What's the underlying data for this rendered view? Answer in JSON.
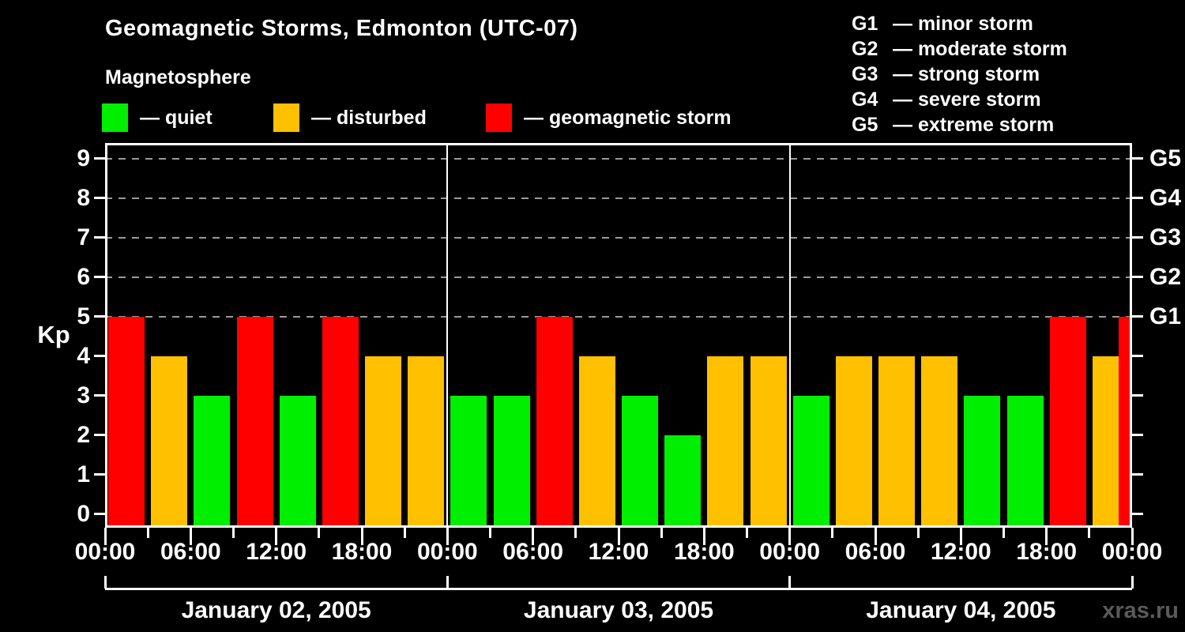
{
  "header": {
    "title": "Geomagnetic Storms, Edmonton (UTC-07)",
    "subtitle": "Magnetosphere",
    "legend": [
      {
        "status": "quiet",
        "label": "— quiet",
        "color": "#00ee00"
      },
      {
        "status": "disturbed",
        "label": "— disturbed",
        "color": "#ffc000"
      },
      {
        "status": "storm",
        "label": "— geomagnetic storm",
        "color": "#ff0000"
      }
    ],
    "g_scale_legend": [
      {
        "code": "G1",
        "label": "— minor storm"
      },
      {
        "code": "G2",
        "label": "— moderate storm"
      },
      {
        "code": "G3",
        "label": "— strong storm"
      },
      {
        "code": "G4",
        "label": "— severe storm"
      },
      {
        "code": "G5",
        "label": "— extreme storm"
      }
    ]
  },
  "chart_data": {
    "type": "bar",
    "title": "Geomagnetic Storms, Edmonton (UTC-07)",
    "ylabel": "Kp",
    "ylim": [
      0,
      9.4
    ],
    "yticks": [
      0,
      1,
      2,
      3,
      4,
      5,
      6,
      7,
      8,
      9
    ],
    "gridlines_at": [
      5,
      6,
      7,
      8,
      9
    ],
    "grid": "dashed horizontal at storm levels only",
    "legend_position": "top",
    "right_axis": [
      {
        "kp": 5,
        "label": "G1"
      },
      {
        "kp": 6,
        "label": "G2"
      },
      {
        "kp": 7,
        "label": "G3"
      },
      {
        "kp": 8,
        "label": "G4"
      },
      {
        "kp": 9,
        "label": "G5"
      }
    ],
    "hours_per_bar": 3,
    "x_tick_labels": [
      "00:00",
      "06:00",
      "12:00",
      "18:00",
      "00:00",
      "06:00",
      "12:00",
      "18:00",
      "00:00",
      "06:00",
      "12:00",
      "18:00",
      "00:00"
    ],
    "days": [
      {
        "date": "January 02, 2005",
        "kp_values": [
          5,
          4,
          3,
          5,
          3,
          5,
          4,
          4
        ],
        "statuses": [
          "storm",
          "disturbed",
          "quiet",
          "storm",
          "quiet",
          "storm",
          "disturbed",
          "disturbed"
        ]
      },
      {
        "date": "January 03, 2005",
        "kp_values": [
          3,
          3,
          5,
          4,
          3,
          2,
          4,
          4
        ],
        "statuses": [
          "quiet",
          "quiet",
          "storm",
          "disturbed",
          "quiet",
          "quiet",
          "disturbed",
          "disturbed"
        ]
      },
      {
        "date": "January 04, 2005",
        "kp_values": [
          3,
          4,
          4,
          4,
          3,
          3,
          5,
          4
        ],
        "statuses": [
          "quiet",
          "disturbed",
          "disturbed",
          "disturbed",
          "quiet",
          "quiet",
          "storm",
          "disturbed"
        ]
      }
    ],
    "partial_next_bar": {
      "kp": 5,
      "status": "storm"
    },
    "status_colors": {
      "quiet": "#00ee00",
      "disturbed": "#ffc000",
      "storm": "#ff0000"
    },
    "gridline_color": "#9a9a9a",
    "background_color": "#000000",
    "text_color": "#ffffff"
  },
  "footer": {
    "watermark": "xras.ru"
  }
}
